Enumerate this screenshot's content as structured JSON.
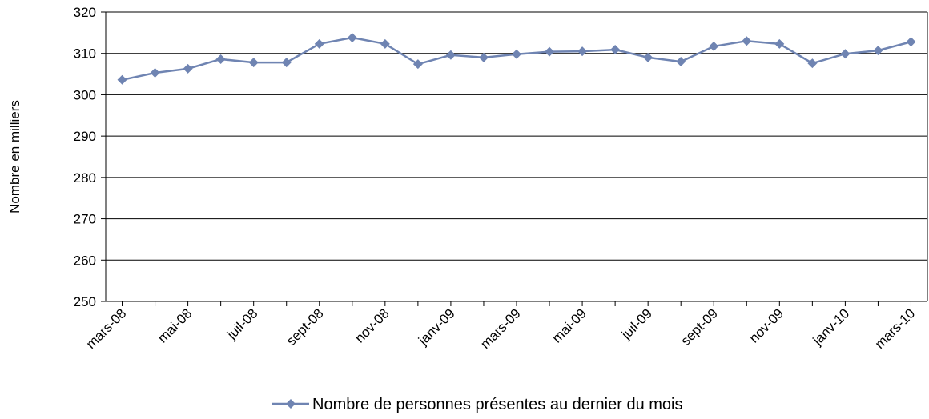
{
  "chart_data": {
    "type": "line",
    "y_label": "Nombre en milliers",
    "categories": [
      "mars-08",
      null,
      "mai-08",
      null,
      "juil-08",
      null,
      "sept-08",
      null,
      "nov-08",
      null,
      "janv-09",
      null,
      "mars-09",
      null,
      "mai-09",
      null,
      "juil-09",
      null,
      "sept-09",
      null,
      "nov-09",
      null,
      "janv-10",
      null,
      "mars-10"
    ],
    "series": [
      {
        "name": "Nombre de personnes présentes au dernier du mois",
        "color": "#6f84b2",
        "values": [
          303.6,
          305.3,
          306.3,
          308.6,
          307.8,
          307.8,
          312.3,
          313.8,
          312.3,
          307.4,
          309.6,
          309.0,
          309.8,
          310.4,
          310.5,
          310.9,
          309.0,
          308.0,
          311.7,
          313.0,
          312.3,
          307.6,
          309.9,
          310.7,
          312.8
        ]
      }
    ],
    "ylim": [
      250,
      320
    ],
    "yticks": [
      250,
      260,
      270,
      280,
      290,
      300,
      310,
      320
    ],
    "grid": true,
    "legend": "bottom"
  }
}
